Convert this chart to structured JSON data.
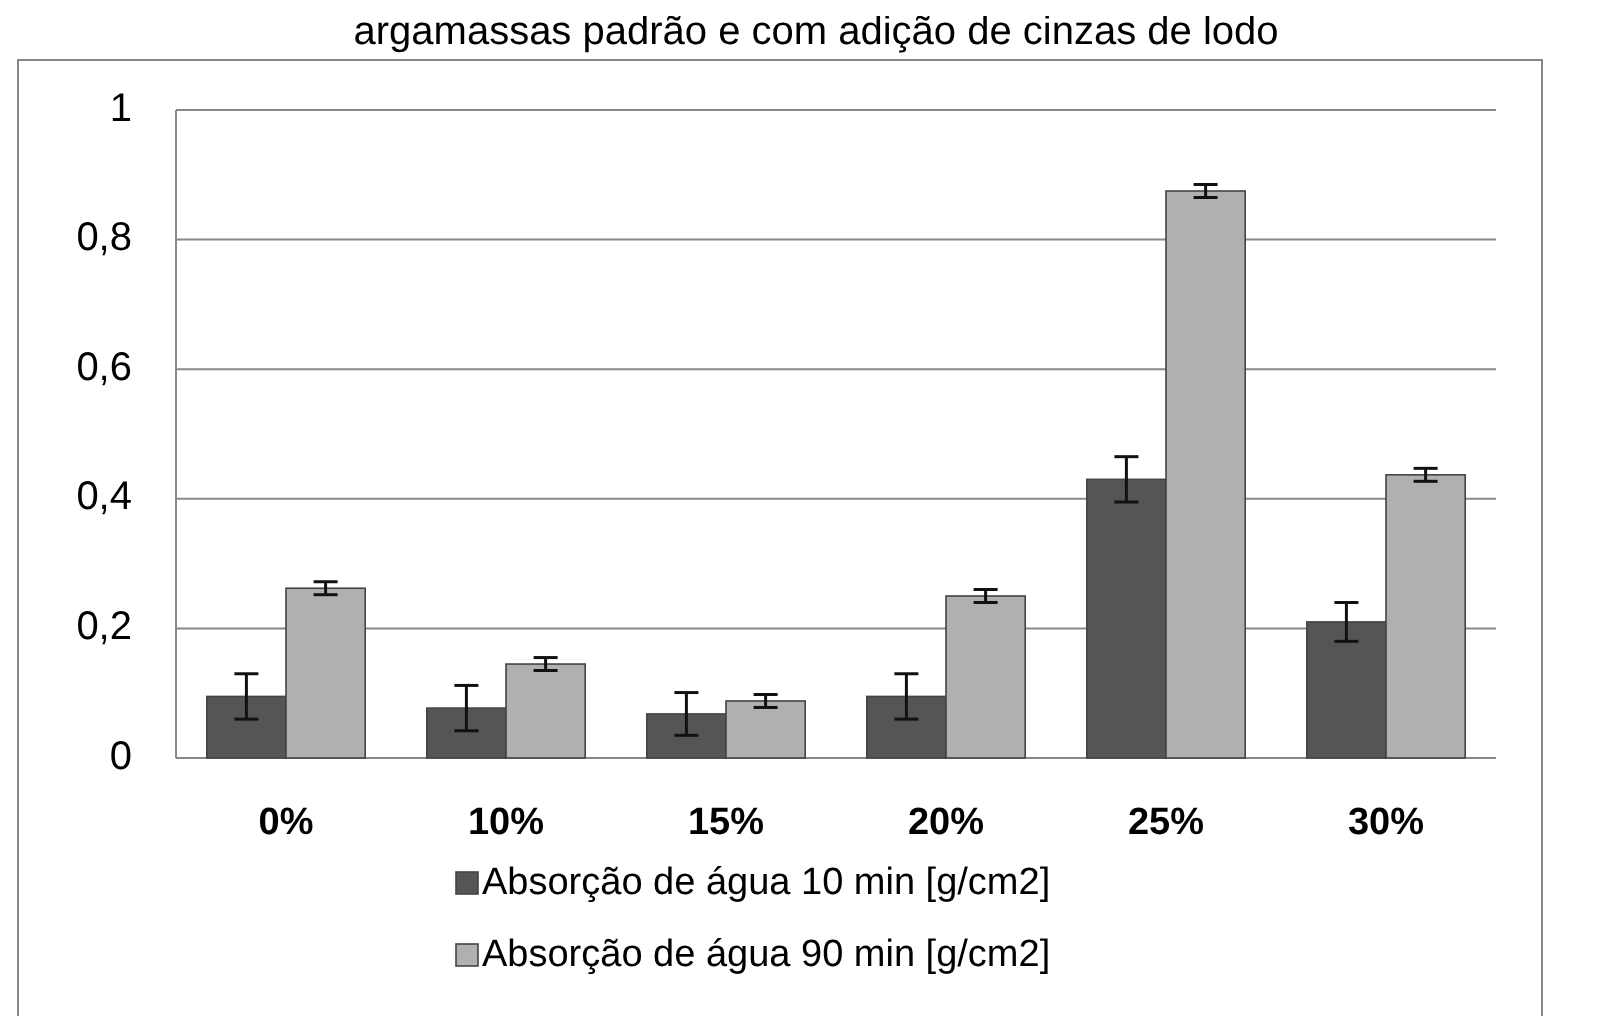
{
  "chart_data": {
    "type": "bar",
    "title": "argamassas padrão e com adição de cinzas de lodo",
    "categories": [
      "0%",
      "10%",
      "15%",
      "20%",
      "25%",
      "30%"
    ],
    "series": [
      {
        "name": "Absorção de água 10 min [g/cm2]",
        "color": "#555555",
        "values": [
          0.095,
          0.077,
          0.068,
          0.095,
          0.43,
          0.21
        ],
        "errors": [
          0.035,
          0.035,
          0.033,
          0.035,
          0.035,
          0.03
        ]
      },
      {
        "name": "Absorção de água 90 min [g/cm2]",
        "color": "#b0b0b0",
        "values": [
          0.262,
          0.145,
          0.088,
          0.25,
          0.875,
          0.437
        ],
        "errors": [
          0.01,
          0.01,
          0.01,
          0.01,
          0.01,
          0.01
        ]
      }
    ],
    "ylim": [
      0,
      1
    ],
    "yticks": [
      0,
      {
        "value": 0.2,
        "label": "0,2"
      },
      {
        "value": 0.4,
        "label": "0,4"
      },
      {
        "value": 0.6,
        "label": "0,6"
      },
      {
        "value": 0.8,
        "label": "0,8"
      },
      1
    ],
    "grid": "y",
    "legend": "bottom"
  }
}
